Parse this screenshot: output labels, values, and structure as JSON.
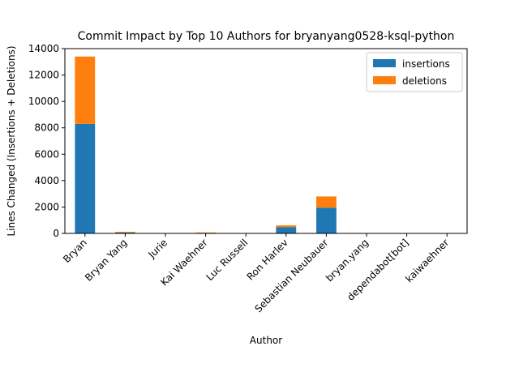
{
  "chart_data": {
    "type": "bar",
    "stacked": true,
    "title": "Commit Impact by Top 10 Authors for bryanyang0528-ksql-python",
    "xlabel": "Author",
    "ylabel": "Lines Changed (Insertions + Deletions)",
    "categories": [
      "Bryan",
      "Bryan Yang",
      "Jurie",
      "Kai Waehner",
      "Luc Russell",
      "Ron Harlev",
      "Sebastian Neubauer",
      "bryan.yang",
      "dependabot[bot]",
      "kaiwaehner"
    ],
    "series": [
      {
        "name": "insertions",
        "color": "#1f77b4",
        "values": [
          8300,
          60,
          5,
          40,
          5,
          480,
          1950,
          5,
          5,
          5
        ]
      },
      {
        "name": "deletions",
        "color": "#ff7f0e",
        "values": [
          5100,
          50,
          3,
          30,
          3,
          130,
          850,
          3,
          3,
          3
        ]
      }
    ],
    "ylim": [
      0,
      14000
    ],
    "yticks": [
      "0",
      "2000",
      "4000",
      "6000",
      "8000",
      "10000",
      "12000",
      "14000"
    ],
    "grid": false,
    "legend_position": "top-right"
  }
}
